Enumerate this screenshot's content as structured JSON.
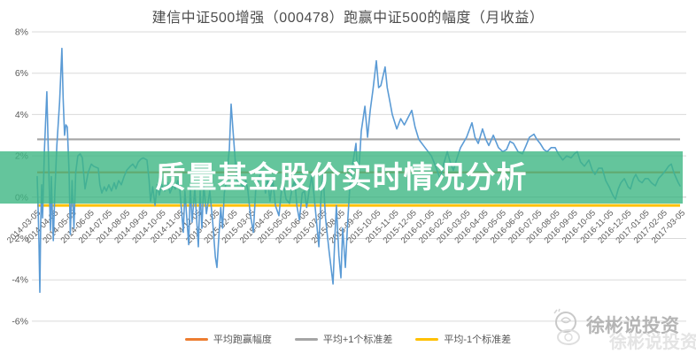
{
  "header": {
    "title": "建信中证500增强（000478）跑赢中证500的幅度（月收益）"
  },
  "overlay": {
    "text": "质量基金股价实时情况分析",
    "band_color": "rgba(61,183,131,0.8)"
  },
  "watermark": {
    "text": "徐彬说投资"
  },
  "chart_data": {
    "type": "line",
    "title": "建信中证500增强（000478）跑赢中证500的幅度（月收益）",
    "xlabel": "",
    "ylabel": "",
    "grid": true,
    "legend_position": "bottom",
    "y_range_percent": [
      -6,
      8
    ],
    "y_ticks": [
      "8%",
      "6%",
      "4%",
      "2%",
      "0%",
      "-2%",
      "-4%",
      "-6%"
    ],
    "x_labels": [
      "2014-03-05",
      "2014-04-05",
      "2014-05-05",
      "2014-06-05",
      "2014-07-05",
      "2014-08-05",
      "2014-09-05",
      "2014-10-05",
      "2014-11-05",
      "2014-12-05",
      "2015-01-05",
      "2015-02-05",
      "2015-03-05",
      "2015-04-05",
      "2015-05-05",
      "2015-06-05",
      "2015-07-05",
      "2015-08-05",
      "2015-09-05",
      "2015-10-05",
      "2015-11-05",
      "2015-12-05",
      "2016-01-05",
      "2016-02-05",
      "2016-03-05",
      "2016-04-05",
      "2016-05-05",
      "2016-06-05",
      "2016-07-05",
      "2016-08-05",
      "2016-09-05",
      "2016-10-05",
      "2016-11-05",
      "2016-12-05",
      "2017-01-05",
      "2017-02-05",
      "2017-03-05"
    ],
    "reference_lines": [
      {
        "label": "平均跑赢幅度",
        "value_percent": 1.2,
        "color": "#ED7D31",
        "width": 2.2
      },
      {
        "label": "平均+1个标准差",
        "value_percent": 2.8,
        "color": "#A5A5A5",
        "width": 2.2
      },
      {
        "label": "平均-1个标准差",
        "value_percent": -0.4,
        "color": "#FFC000",
        "width": 3
      }
    ],
    "main_series": {
      "color": "#5B9BD5",
      "unit": "percent",
      "x_unit": "months_since_2014-03-05",
      "points": [
        [
          0,
          1.0
        ],
        [
          0.05,
          -0.5
        ],
        [
          0.1,
          -2.2
        ],
        [
          0.15,
          -4.6
        ],
        [
          0.2,
          -1.2
        ],
        [
          0.25,
          0.6
        ],
        [
          0.3,
          -1.0
        ],
        [
          0.4,
          2.2
        ],
        [
          0.54,
          5.1
        ],
        [
          0.6,
          3.0
        ],
        [
          0.64,
          1.7
        ],
        [
          0.7,
          -0.4
        ],
        [
          0.74,
          -1.6
        ],
        [
          0.79,
          1.0
        ],
        [
          0.85,
          -0.9
        ],
        [
          0.9,
          -2.1
        ],
        [
          0.99,
          0.3
        ],
        [
          1.1,
          2.5
        ],
        [
          1.25,
          4.6
        ],
        [
          1.38,
          7.2
        ],
        [
          1.45,
          4.8
        ],
        [
          1.53,
          3.0
        ],
        [
          1.6,
          3.5
        ],
        [
          1.68,
          3.4
        ],
        [
          1.78,
          1.2
        ],
        [
          1.85,
          -1.8
        ],
        [
          1.95,
          0.8
        ],
        [
          2.05,
          -1.5
        ],
        [
          2.15,
          1.2
        ],
        [
          2.27,
          2.0
        ],
        [
          2.4,
          2.1
        ],
        [
          2.52,
          1.9
        ],
        [
          2.67,
          0.4
        ],
        [
          2.85,
          1.2
        ],
        [
          3.02,
          1.6
        ],
        [
          3.15,
          1.5
        ],
        [
          3.41,
          1.4
        ],
        [
          3.5,
          0.6
        ],
        [
          3.61,
          0.2
        ],
        [
          3.75,
          0.5
        ],
        [
          3.86,
          0.3
        ],
        [
          4.0,
          0.6
        ],
        [
          4.15,
          0.3
        ],
        [
          4.3,
          0.7
        ],
        [
          4.4,
          0.4
        ],
        [
          4.55,
          0.8
        ],
        [
          4.7,
          0.6
        ],
        [
          4.85,
          1.0
        ],
        [
          5.0,
          1.3
        ],
        [
          5.2,
          1.5
        ],
        [
          5.34,
          1.6
        ],
        [
          5.5,
          1.4
        ],
        [
          5.64,
          1.7
        ],
        [
          5.8,
          1.85
        ],
        [
          5.93,
          1.9
        ],
        [
          6.13,
          1.8
        ],
        [
          6.25,
          0.8
        ],
        [
          6.33,
          -0.2
        ],
        [
          6.45,
          0.5
        ],
        [
          6.58,
          -0.4
        ],
        [
          6.7,
          0.6
        ],
        [
          6.82,
          0.1
        ],
        [
          6.95,
          0.6
        ],
        [
          7.12,
          0.3
        ],
        [
          7.3,
          0.7
        ],
        [
          7.42,
          0.2
        ],
        [
          7.6,
          0.6
        ],
        [
          7.71,
          0.4
        ],
        [
          7.85,
          0.8
        ],
        [
          7.96,
          0.4
        ],
        [
          8.16,
          -1.7
        ],
        [
          8.25,
          0.3
        ],
        [
          8.46,
          -2.3
        ],
        [
          8.55,
          0.5
        ],
        [
          8.65,
          -1.2
        ],
        [
          8.8,
          0.4
        ],
        [
          9.0,
          -2.4
        ],
        [
          9.1,
          0.3
        ],
        [
          9.2,
          -1.5
        ],
        [
          9.3,
          0.6
        ],
        [
          9.45,
          -0.8
        ],
        [
          9.64,
          0.3
        ],
        [
          9.8,
          -1.2
        ],
        [
          9.95,
          -2.9
        ],
        [
          10.04,
          -3.4
        ],
        [
          10.15,
          -1.8
        ],
        [
          10.25,
          -0.5
        ],
        [
          10.35,
          -1.5
        ],
        [
          10.45,
          0.2
        ],
        [
          10.53,
          0.6
        ],
        [
          10.63,
          1.5
        ],
        [
          10.73,
          2.3
        ],
        [
          10.83,
          4.5
        ],
        [
          10.88,
          3.9
        ],
        [
          10.93,
          3.3
        ],
        [
          11.0,
          2.5
        ],
        [
          11.08,
          1.5
        ],
        [
          11.2,
          0.6
        ],
        [
          11.35,
          0.9
        ],
        [
          11.5,
          0.4
        ],
        [
          11.65,
          0.8
        ],
        [
          11.77,
          0.3
        ],
        [
          11.9,
          -0.8
        ],
        [
          12.07,
          -1.7
        ],
        [
          12.2,
          0.3
        ],
        [
          12.36,
          0.8
        ],
        [
          12.5,
          1.2
        ],
        [
          12.61,
          1.1
        ],
        [
          12.75,
          0.2
        ],
        [
          12.86,
          0.9
        ],
        [
          13.0,
          -0.2
        ],
        [
          13.15,
          0.9
        ],
        [
          13.3,
          -0.4
        ],
        [
          13.5,
          -0.9
        ],
        [
          13.65,
          0.4
        ],
        [
          13.75,
          0.6
        ],
        [
          13.9,
          -0.1
        ],
        [
          14.09,
          -0.3
        ],
        [
          14.25,
          0.5
        ],
        [
          14.39,
          0.8
        ],
        [
          14.5,
          -0.4
        ],
        [
          14.64,
          -1.1
        ],
        [
          14.8,
          0.2
        ],
        [
          14.93,
          0.3
        ],
        [
          15.05,
          -0.5
        ],
        [
          15.2,
          0.4
        ],
        [
          15.33,
          1.0
        ],
        [
          15.45,
          0.2
        ],
        [
          15.6,
          -1.2
        ],
        [
          15.73,
          -2.4
        ],
        [
          15.85,
          0.0
        ],
        [
          15.97,
          1.1
        ],
        [
          16.1,
          -1.0
        ],
        [
          16.3,
          -2.6
        ],
        [
          16.52,
          -4.2
        ],
        [
          16.62,
          -2.0
        ],
        [
          16.71,
          -0.4
        ],
        [
          16.85,
          -2.8
        ],
        [
          16.96,
          -3.9
        ],
        [
          17.06,
          -1.5
        ],
        [
          17.21,
          -3.4
        ],
        [
          17.35,
          -1.0
        ],
        [
          17.46,
          0.5
        ],
        [
          17.6,
          1.5
        ],
        [
          17.8,
          2.6
        ],
        [
          17.9,
          0.9
        ],
        [
          18.0,
          1.8
        ],
        [
          18.1,
          3.2
        ],
        [
          18.3,
          4.4
        ],
        [
          18.45,
          2.9
        ],
        [
          18.6,
          4.2
        ],
        [
          18.75,
          5.2
        ],
        [
          18.94,
          6.6
        ],
        [
          19.07,
          5.3
        ],
        [
          19.19,
          5.4
        ],
        [
          19.43,
          6.3
        ],
        [
          19.55,
          5.3
        ],
        [
          19.68,
          4.7
        ],
        [
          19.83,
          4.0
        ],
        [
          20.08,
          3.3
        ],
        [
          20.3,
          3.8
        ],
        [
          20.5,
          3.5
        ],
        [
          20.92,
          4.2
        ],
        [
          21.1,
          3.4
        ],
        [
          21.31,
          2.8
        ],
        [
          21.66,
          2.4
        ],
        [
          22.01,
          2.0
        ],
        [
          22.25,
          1.5
        ],
        [
          22.5,
          0.9
        ],
        [
          22.7,
          1.6
        ],
        [
          22.9,
          2.2
        ],
        [
          23.1,
          1.6
        ],
        [
          23.24,
          1.3
        ],
        [
          23.45,
          1.9
        ],
        [
          23.64,
          2.4
        ],
        [
          23.98,
          2.9
        ],
        [
          24.28,
          3.6
        ],
        [
          24.45,
          2.9
        ],
        [
          24.63,
          2.6
        ],
        [
          24.87,
          3.3
        ],
        [
          25.05,
          2.8
        ],
        [
          25.22,
          2.5
        ],
        [
          25.47,
          3.0
        ],
        [
          25.76,
          2.4
        ],
        [
          26.0,
          2.2
        ],
        [
          26.21,
          2.3
        ],
        [
          26.4,
          2.7
        ],
        [
          26.6,
          2.6
        ],
        [
          26.85,
          2.2
        ],
        [
          27.1,
          2.1
        ],
        [
          27.3,
          2.5
        ],
        [
          27.49,
          2.9
        ],
        [
          27.74,
          3.05
        ],
        [
          27.9,
          2.8
        ],
        [
          28.09,
          2.6
        ],
        [
          28.3,
          2.3
        ],
        [
          28.48,
          2.2
        ],
        [
          28.7,
          2.4
        ],
        [
          28.93,
          2.4
        ],
        [
          29.1,
          2.1
        ],
        [
          29.35,
          1.8
        ],
        [
          29.57,
          2.0
        ],
        [
          29.82,
          1.9
        ],
        [
          30.0,
          2.1
        ],
        [
          30.16,
          2.2
        ],
        [
          30.35,
          1.7
        ],
        [
          30.56,
          1.5
        ],
        [
          30.81,
          1.8
        ],
        [
          31.0,
          1.3
        ],
        [
          31.15,
          1.1
        ],
        [
          31.35,
          1.4
        ],
        [
          31.55,
          1.4
        ],
        [
          31.75,
          0.8
        ],
        [
          31.94,
          0.5
        ],
        [
          32.15,
          0.1
        ],
        [
          32.29,
          -0.1
        ],
        [
          32.45,
          0.4
        ],
        [
          32.6,
          0.7
        ],
        [
          32.79,
          0.9
        ],
        [
          33.0,
          0.5
        ],
        [
          33.13,
          0.4
        ],
        [
          33.3,
          0.9
        ],
        [
          33.43,
          1.1
        ],
        [
          33.6,
          0.8
        ],
        [
          33.78,
          0.7
        ],
        [
          33.95,
          0.9
        ],
        [
          34.12,
          0.9
        ],
        [
          34.3,
          0.7
        ],
        [
          34.52,
          0.55
        ],
        [
          34.7,
          0.9
        ],
        [
          34.91,
          1.1
        ],
        [
          35.1,
          1.3
        ],
        [
          35.26,
          1.5
        ],
        [
          35.41,
          1.6
        ],
        [
          35.55,
          1.2
        ],
        [
          35.65,
          1.0
        ],
        [
          35.8,
          0.7
        ],
        [
          35.9,
          0.55
        ]
      ]
    }
  }
}
